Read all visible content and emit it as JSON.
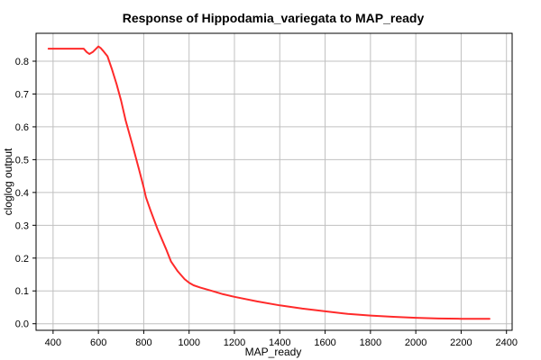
{
  "chart_data": {
    "type": "line",
    "title": "Response of Hippodamia_variegata to MAP_ready",
    "xlabel": "MAP_ready",
    "ylabel": "cloglog output",
    "xlim": [
      325,
      2425
    ],
    "ylim": [
      -0.02,
      0.885
    ],
    "xticks": [
      400,
      600,
      800,
      1000,
      1200,
      1400,
      1600,
      1800,
      2000,
      2200,
      2400
    ],
    "yticks": [
      0.0,
      0.1,
      0.2,
      0.3,
      0.4,
      0.5,
      0.6,
      0.7,
      0.8
    ],
    "grid": true,
    "series": [
      {
        "color": "#ff2a2a",
        "x": [
          380,
          450,
          500,
          535,
          548,
          560,
          575,
          590,
          600,
          610,
          620,
          640,
          660,
          680,
          700,
          720,
          750,
          780,
          800,
          810,
          830,
          860,
          900,
          920,
          950,
          980,
          1000,
          1020,
          1050,
          1100,
          1150,
          1200,
          1300,
          1400,
          1500,
          1600,
          1700,
          1800,
          1900,
          2000,
          2100,
          2200,
          2325
        ],
        "y": [
          0.838,
          0.838,
          0.838,
          0.838,
          0.828,
          0.822,
          0.828,
          0.838,
          0.845,
          0.84,
          0.832,
          0.815,
          0.775,
          0.73,
          0.68,
          0.62,
          0.545,
          0.468,
          0.415,
          0.385,
          0.345,
          0.29,
          0.225,
          0.19,
          0.16,
          0.136,
          0.125,
          0.117,
          0.11,
          0.1,
          0.09,
          0.082,
          0.068,
          0.056,
          0.046,
          0.038,
          0.03,
          0.025,
          0.021,
          0.018,
          0.016,
          0.015,
          0.015
        ]
      }
    ]
  }
}
